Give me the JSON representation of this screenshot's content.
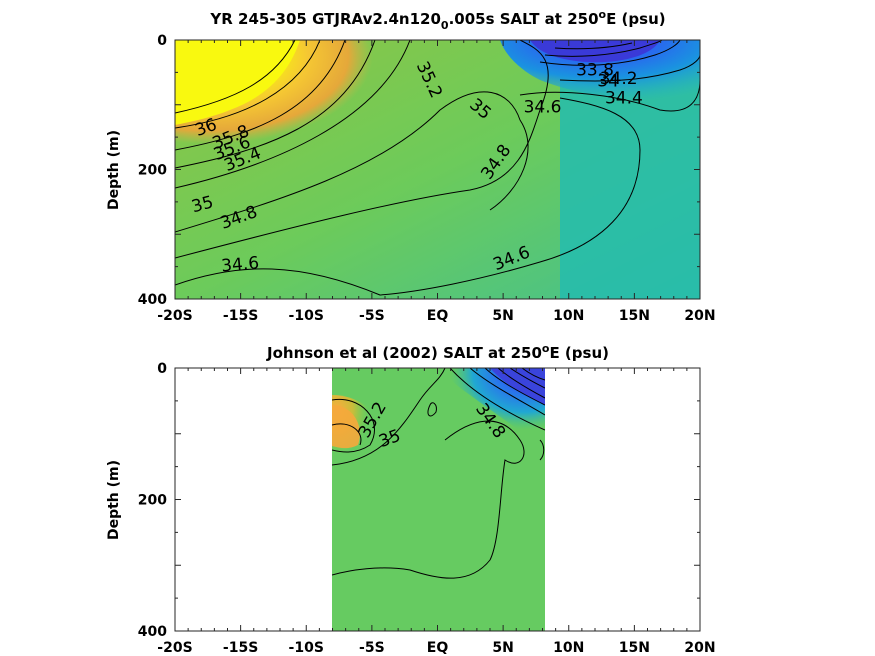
{
  "chart_data": [
    {
      "type": "heatmap",
      "subtype": "filled-contour",
      "title_main": "YR 245-305 GTJRAv2.4n120",
      "title_sub": "0",
      "title_rest": ".005s SALT at 250",
      "title_sup": "o",
      "title_end": "E (psu)",
      "ylabel": "Depth (m)",
      "xlim": [
        -20,
        20
      ],
      "ylim": [
        400,
        0
      ],
      "x_ticks": [
        -20,
        -15,
        -10,
        -5,
        0,
        5,
        10,
        15,
        20
      ],
      "x_tick_labels": [
        "-20S",
        "-15S",
        "-10S",
        "-5S",
        "EQ",
        "5N",
        "10N",
        "15N",
        "20N"
      ],
      "y_tick_labels": [
        "0",
        "200",
        "400"
      ],
      "y_ticks": [
        0,
        200,
        400
      ],
      "contour_labels": [
        {
          "text": "36",
          "x": -17.5,
          "y": 143,
          "rot": -20
        },
        {
          "text": "35.8",
          "x": -15.6,
          "y": 158,
          "rot": -22
        },
        {
          "text": "35.6",
          "x": -15.5,
          "y": 175,
          "rot": -22
        },
        {
          "text": "35.4",
          "x": -14.7,
          "y": 192,
          "rot": -22
        },
        {
          "text": "35.2",
          "x": -1.0,
          "y": 65,
          "rot": 65
        },
        {
          "text": "35",
          "x": 3.0,
          "y": 113,
          "rot": 40
        },
        {
          "text": "35",
          "x": -17.8,
          "y": 262,
          "rot": -15
        },
        {
          "text": "34.8",
          "x": -15.0,
          "y": 282,
          "rot": -20
        },
        {
          "text": "34.8",
          "x": 4.8,
          "y": 193,
          "rot": -55
        },
        {
          "text": "34.6",
          "x": -15.0,
          "y": 355,
          "rot": -5
        },
        {
          "text": "34.6",
          "x": 8.0,
          "y": 112,
          "rot": 0
        },
        {
          "text": "34.6",
          "x": 5.8,
          "y": 345,
          "rot": -22
        },
        {
          "text": "34.4",
          "x": 14.2,
          "y": 98,
          "rot": 0
        },
        {
          "text": "34.2",
          "x": 13.8,
          "y": 68,
          "rot": 0
        },
        {
          "text": "33.8",
          "x": 12.0,
          "y": 55,
          "rot": 0
        },
        {
          "text": "34",
          "x": 13.0,
          "y": 72,
          "rot": 0
        }
      ]
    },
    {
      "type": "heatmap",
      "subtype": "filled-contour",
      "title_main": "Johnson et al (2002) SALT at 250",
      "title_sup": "o",
      "title_end": "E (psu)",
      "ylabel": "Depth (m)",
      "xlim": [
        -20,
        20
      ],
      "ylim": [
        400,
        0
      ],
      "data_xrange": [
        -8,
        8.2
      ],
      "x_ticks": [
        -20,
        -15,
        -10,
        -5,
        0,
        5,
        10,
        15,
        20
      ],
      "x_tick_labels": [
        "-20S",
        "-15S",
        "-10S",
        "-5S",
        "EQ",
        "5N",
        "10N",
        "15N",
        "20N"
      ],
      "y_tick_labels": [
        "0",
        "200",
        "400"
      ],
      "y_ticks": [
        0,
        200,
        400
      ],
      "contour_labels": [
        {
          "text": "35.2",
          "x": -4.6,
          "y": 83,
          "rot": -60
        },
        {
          "text": "35",
          "x": -3.5,
          "y": 115,
          "rot": -20
        },
        {
          "text": "34.8",
          "x": 3.7,
          "y": 85,
          "rot": 55
        }
      ]
    }
  ]
}
